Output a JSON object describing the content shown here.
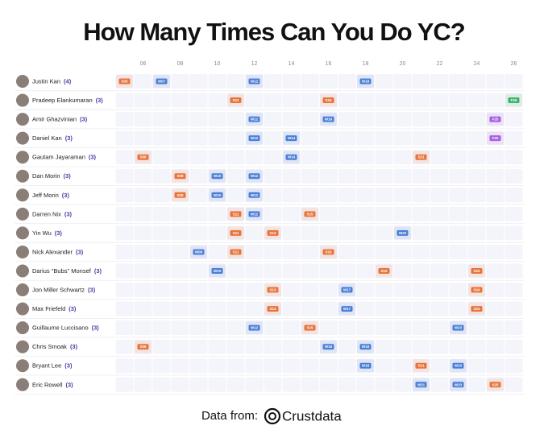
{
  "title": "How Many Times Can You Do YC?",
  "year_labels": [
    "06",
    "08",
    "10",
    "12",
    "14",
    "16",
    "18",
    "20",
    "22",
    "24",
    "26"
  ],
  "rows": [
    {
      "name": "Justin Kan",
      "count": "(4)",
      "batches": [
        {
          "label": "S05",
          "color": "#e8743b"
        },
        {
          "label": "W07",
          "color": "#4a7fd6"
        },
        {
          "label": "W12",
          "color": "#4a7fd6"
        },
        {
          "label": "W18",
          "color": "#4a7fd6"
        }
      ]
    },
    {
      "name": "Pradeep Elankumaran",
      "count": "(3)",
      "batches": [
        {
          "label": "S11",
          "color": "#e8743b"
        },
        {
          "label": "S16",
          "color": "#e8743b"
        },
        {
          "label": "F26",
          "color": "#3db36b"
        }
      ]
    },
    {
      "name": "Amir Ghazvinian",
      "count": "(3)",
      "batches": [
        {
          "label": "W12",
          "color": "#4a7fd6"
        },
        {
          "label": "W16",
          "color": "#4a7fd6"
        },
        {
          "label": "F25",
          "color": "#a85ee0"
        }
      ]
    },
    {
      "name": "Daniel Kan",
      "count": "(3)",
      "batches": [
        {
          "label": "W12",
          "color": "#4a7fd6"
        },
        {
          "label": "W14",
          "color": "#4a7fd6"
        },
        {
          "label": "F25",
          "color": "#a85ee0"
        }
      ]
    },
    {
      "name": "Gautam Jayaraman",
      "count": "(3)",
      "batches": [
        {
          "label": "S06",
          "color": "#e8743b"
        },
        {
          "label": "W14",
          "color": "#4a7fd6"
        },
        {
          "label": "S21",
          "color": "#e8743b"
        }
      ]
    },
    {
      "name": "Dan Morin",
      "count": "(3)",
      "batches": [
        {
          "label": "S08",
          "color": "#e8743b"
        },
        {
          "label": "W10",
          "color": "#4a7fd6"
        },
        {
          "label": "W12",
          "color": "#4a7fd6"
        }
      ]
    },
    {
      "name": "Jeff Morin",
      "count": "(3)",
      "batches": [
        {
          "label": "S08",
          "color": "#e8743b"
        },
        {
          "label": "W10",
          "color": "#4a7fd6"
        },
        {
          "label": "W12",
          "color": "#4a7fd6"
        }
      ]
    },
    {
      "name": "Darren Nix",
      "count": "(3)",
      "batches": [
        {
          "label": "S11",
          "color": "#e8743b"
        },
        {
          "label": "W12",
          "color": "#4a7fd6"
        },
        {
          "label": "S15",
          "color": "#e8743b"
        }
      ]
    },
    {
      "name": "Yin Wu",
      "count": "(3)",
      "batches": [
        {
          "label": "S11",
          "color": "#e8743b"
        },
        {
          "label": "S13",
          "color": "#e8743b"
        },
        {
          "label": "W20",
          "color": "#4a7fd6"
        }
      ]
    },
    {
      "name": "Nick Alexander",
      "count": "(3)",
      "batches": [
        {
          "label": "W09",
          "color": "#4a7fd6"
        },
        {
          "label": "S11",
          "color": "#e8743b"
        },
        {
          "label": "S16",
          "color": "#e8743b"
        }
      ]
    },
    {
      "name": "Darius \"Bubs\" Monsef",
      "count": "(3)",
      "batches": [
        {
          "label": "W10",
          "color": "#4a7fd6"
        },
        {
          "label": "S19",
          "color": "#e8743b"
        },
        {
          "label": "S24",
          "color": "#e8743b"
        }
      ]
    },
    {
      "name": "Jon Miller Schwartz",
      "count": "(3)",
      "batches": [
        {
          "label": "S13",
          "color": "#e8743b"
        },
        {
          "label": "W17",
          "color": "#4a7fd6"
        },
        {
          "label": "S24",
          "color": "#e8743b"
        }
      ]
    },
    {
      "name": "Max Friefeld",
      "count": "(3)",
      "batches": [
        {
          "label": "S13",
          "color": "#e8743b"
        },
        {
          "label": "W17",
          "color": "#4a7fd6"
        },
        {
          "label": "S24",
          "color": "#e8743b"
        }
      ]
    },
    {
      "name": "Guillaume Luccisano",
      "count": "(3)",
      "batches": [
        {
          "label": "W12",
          "color": "#4a7fd6"
        },
        {
          "label": "S15",
          "color": "#e8743b"
        },
        {
          "label": "W23",
          "color": "#4a7fd6"
        }
      ]
    },
    {
      "name": "Chris Smoak",
      "count": "(3)",
      "batches": [
        {
          "label": "S06",
          "color": "#e8743b"
        },
        {
          "label": "W16",
          "color": "#4a7fd6"
        },
        {
          "label": "W18",
          "color": "#4a7fd6"
        }
      ]
    },
    {
      "name": "Bryant Lee",
      "count": "(3)",
      "batches": [
        {
          "label": "W18",
          "color": "#4a7fd6"
        },
        {
          "label": "S21",
          "color": "#e8743b"
        },
        {
          "label": "W23",
          "color": "#4a7fd6"
        }
      ]
    },
    {
      "name": "Eric Rowell",
      "count": "(3)",
      "batches": [
        {
          "label": "W21",
          "color": "#4a7fd6"
        },
        {
          "label": "W23",
          "color": "#4a7fd6"
        },
        {
          "label": "S25",
          "color": "#e8743b"
        }
      ]
    }
  ],
  "footer": {
    "prefix": "Data from:",
    "brand": "Crustdata"
  }
}
